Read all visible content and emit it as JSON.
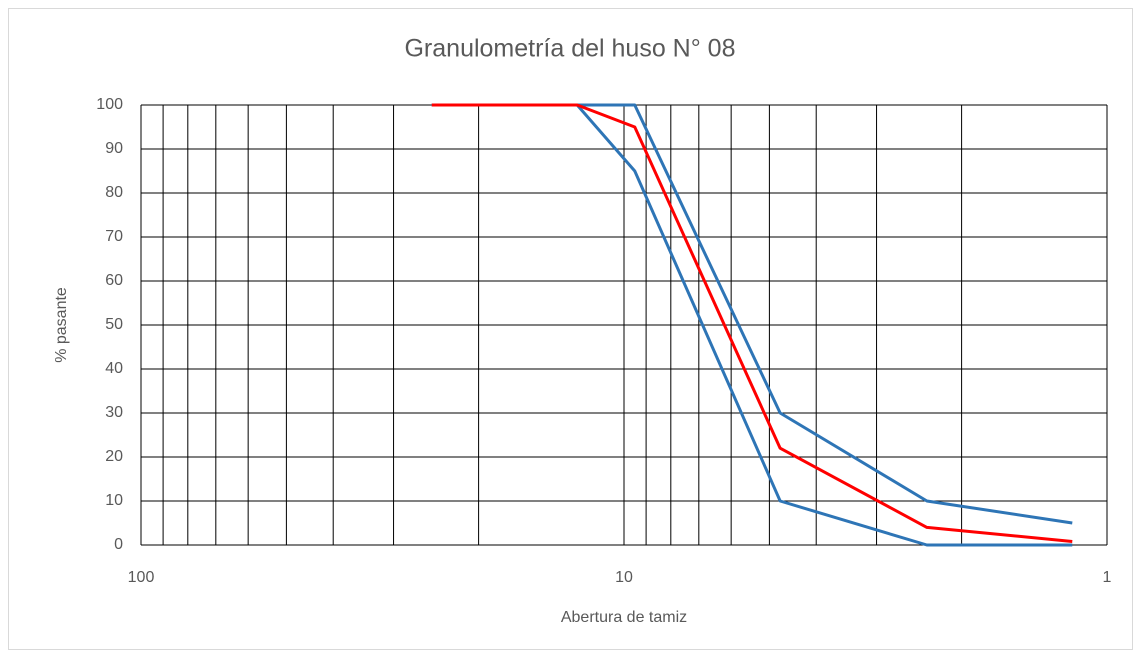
{
  "chart_data": {
    "type": "line",
    "title": "Granulometría del huso N° 08",
    "x_label": "Abertura de tamiz",
    "y_label": "% pasante",
    "x": [
      25,
      12.5,
      9.5,
      4.75,
      2.36,
      1.18
    ],
    "series": [
      {
        "color": "#ff0000",
        "values": [
          100,
          100,
          95,
          22,
          4,
          0.8
        ]
      },
      {
        "color": "#2e75b6",
        "values": [
          100,
          100,
          100,
          30,
          10,
          5
        ]
      },
      {
        "color": "#2e75b6",
        "values": [
          100,
          100,
          85,
          10,
          0,
          0
        ]
      }
    ],
    "xscale": "log",
    "xlim": [
      100,
      1
    ],
    "xticks": [
      100,
      10,
      1
    ],
    "xminorticks": [
      90,
      80,
      70,
      60,
      50,
      40,
      30,
      20,
      9,
      8,
      7,
      6,
      5,
      4,
      3,
      2
    ],
    "ylim": [
      0,
      100
    ],
    "yticks": [
      0,
      10,
      20,
      30,
      40,
      50,
      60,
      70,
      80,
      90,
      100
    ],
    "grid": true
  }
}
